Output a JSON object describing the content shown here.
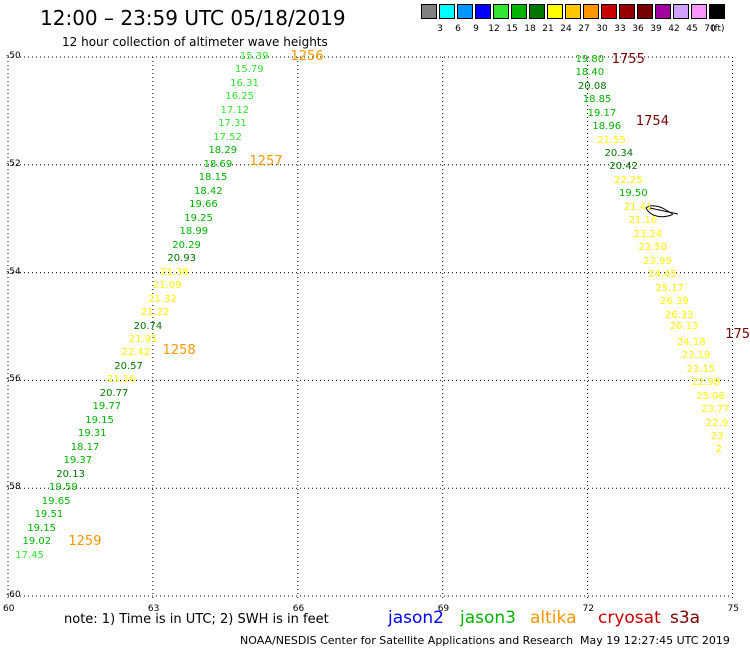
{
  "title": "12:00 – 23:59 UTC 05/18/2019",
  "subtitle": "12 hour collection of altimeter wave heights",
  "scale": {
    "unit": "(ft)",
    "bins": [
      {
        "label": "3",
        "color": "#808080"
      },
      {
        "label": "6",
        "color": "#00ffff"
      },
      {
        "label": "9",
        "color": "#0096ff"
      },
      {
        "label": "12",
        "color": "#0000ff"
      },
      {
        "label": "15",
        "color": "#32e632"
      },
      {
        "label": "18",
        "color": "#00b400"
      },
      {
        "label": "21",
        "color": "#007800"
      },
      {
        "label": "24",
        "color": "#ffff00"
      },
      {
        "label": "27",
        "color": "#ffc800"
      },
      {
        "label": "30",
        "color": "#ff9600"
      },
      {
        "label": "33",
        "color": "#c80000"
      },
      {
        "label": "36",
        "color": "#960000"
      },
      {
        "label": "39",
        "color": "#780000"
      },
      {
        "label": "42",
        "color": "#a000a0"
      },
      {
        "label": "45",
        "color": "#d2a0ff"
      },
      {
        "label": "70",
        "color": "#ff96ff"
      },
      {
        "label": "",
        "color": "#000000"
      }
    ]
  },
  "axes": {
    "y_ticks": [
      "-50",
      "-52",
      "-54",
      "-56",
      "-58",
      "-60"
    ],
    "x_ticks": [
      "60",
      "63",
      "66",
      "69",
      "72",
      "75"
    ]
  },
  "tracks": [
    {
      "satellite": "jason3",
      "points": [
        {
          "lon": 64.8,
          "lat": -50.0,
          "v": "15.39",
          "c": "#32e632"
        },
        {
          "lon": 64.7,
          "lat": -50.25,
          "v": "15.79",
          "c": "#32e632"
        },
        {
          "lon": 64.6,
          "lat": -50.5,
          "v": "16.31",
          "c": "#32e632"
        },
        {
          "lon": 64.5,
          "lat": -50.75,
          "v": "16.25",
          "c": "#32e632"
        },
        {
          "lon": 64.4,
          "lat": -51.0,
          "v": "17.12",
          "c": "#32e632"
        },
        {
          "lon": 64.35,
          "lat": -51.25,
          "v": "17.31",
          "c": "#32e632"
        },
        {
          "lon": 64.25,
          "lat": -51.5,
          "v": "17.52",
          "c": "#32e632"
        },
        {
          "lon": 64.15,
          "lat": -51.75,
          "v": "18.29",
          "c": "#00b400"
        },
        {
          "lon": 64.05,
          "lat": -52.0,
          "v": "18.69",
          "c": "#00b400"
        },
        {
          "lon": 63.95,
          "lat": -52.25,
          "v": "18.15",
          "c": "#00b400"
        },
        {
          "lon": 63.85,
          "lat": -52.5,
          "v": "18.42",
          "c": "#00b400"
        },
        {
          "lon": 63.75,
          "lat": -52.75,
          "v": "19.66",
          "c": "#00b400"
        },
        {
          "lon": 63.65,
          "lat": -53.0,
          "v": "19.25",
          "c": "#00b400"
        },
        {
          "lon": 63.55,
          "lat": -53.25,
          "v": "18.99",
          "c": "#00b400"
        },
        {
          "lon": 63.4,
          "lat": -53.5,
          "v": "20.29",
          "c": "#00b400"
        },
        {
          "lon": 63.3,
          "lat": -53.75,
          "v": "20.93",
          "c": "#007800"
        },
        {
          "lon": 63.15,
          "lat": -54.0,
          "v": "21.38",
          "c": "#ffff00"
        },
        {
          "lon": 63.0,
          "lat": -54.25,
          "v": "21.09",
          "c": "#ffff00"
        },
        {
          "lon": 62.9,
          "lat": -54.5,
          "v": "21.32",
          "c": "#ffff00"
        },
        {
          "lon": 62.75,
          "lat": -54.75,
          "v": "21.22",
          "c": "#ffff00"
        },
        {
          "lon": 62.6,
          "lat": -55.0,
          "v": "20.74",
          "c": "#007800"
        },
        {
          "lon": 62.5,
          "lat": -55.25,
          "v": "21.91",
          "c": "#ffff00"
        },
        {
          "lon": 62.35,
          "lat": -55.5,
          "v": "22.42",
          "c": "#ffff00"
        },
        {
          "lon": 62.2,
          "lat": -55.75,
          "v": "20.57",
          "c": "#007800"
        },
        {
          "lon": 62.05,
          "lat": -56.0,
          "v": "21.16",
          "c": "#ffff00"
        },
        {
          "lon": 61.9,
          "lat": -56.25,
          "v": "20.77",
          "c": "#007800"
        },
        {
          "lon": 61.75,
          "lat": -56.5,
          "v": "19.77",
          "c": "#00b400"
        },
        {
          "lon": 61.6,
          "lat": -56.75,
          "v": "19.15",
          "c": "#00b400"
        },
        {
          "lon": 61.45,
          "lat": -57.0,
          "v": "19.31",
          "c": "#00b400"
        },
        {
          "lon": 61.3,
          "lat": -57.25,
          "v": "18.17",
          "c": "#00b400"
        },
        {
          "lon": 61.15,
          "lat": -57.5,
          "v": "19.37",
          "c": "#00b400"
        },
        {
          "lon": 61.0,
          "lat": -57.75,
          "v": "20.13",
          "c": "#007800"
        },
        {
          "lon": 60.85,
          "lat": -58.0,
          "v": "19.59",
          "c": "#00b400"
        },
        {
          "lon": 60.7,
          "lat": -58.25,
          "v": "19.65",
          "c": "#00b400"
        },
        {
          "lon": 60.55,
          "lat": -58.5,
          "v": "19.51",
          "c": "#00b400"
        },
        {
          "lon": 60.4,
          "lat": -58.75,
          "v": "19.15",
          "c": "#00b400"
        },
        {
          "lon": 60.3,
          "lat": -59.0,
          "v": "19.02",
          "c": "#00b400"
        },
        {
          "lon": 60.15,
          "lat": -59.25,
          "v": "17.45",
          "c": "#32e632"
        }
      ],
      "times": [
        {
          "lon": 65.85,
          "lat": -50.0,
          "t": "1256",
          "c": "#ff9600"
        },
        {
          "lon": 65.0,
          "lat": -51.95,
          "t": "1257",
          "c": "#ff9600"
        },
        {
          "lon": 63.2,
          "lat": -55.45,
          "t": "1258",
          "c": "#ff9600"
        },
        {
          "lon": 61.25,
          "lat": -59.0,
          "t": "1259",
          "c": "#ff9600"
        }
      ]
    },
    {
      "satellite": "s3a",
      "points": [
        {
          "lon": 71.75,
          "lat": -50.05,
          "v": "19.80",
          "c": "#00b400"
        },
        {
          "lon": 71.75,
          "lat": -50.3,
          "v": "18.40",
          "c": "#00b400"
        },
        {
          "lon": 71.8,
          "lat": -50.55,
          "v": "20.08",
          "c": "#007800"
        },
        {
          "lon": 71.9,
          "lat": -50.8,
          "v": "18.85",
          "c": "#00b400"
        },
        {
          "lon": 72.0,
          "lat": -51.05,
          "v": "19.17",
          "c": "#00b400"
        },
        {
          "lon": 72.1,
          "lat": -51.3,
          "v": "18.96",
          "c": "#00b400"
        },
        {
          "lon": 72.2,
          "lat": -51.55,
          "v": "21.55",
          "c": "#ffff00"
        },
        {
          "lon": 72.35,
          "lat": -51.8,
          "v": "20.34",
          "c": "#007800"
        },
        {
          "lon": 72.45,
          "lat": -52.05,
          "v": "20.42",
          "c": "#007800"
        },
        {
          "lon": 72.55,
          "lat": -52.3,
          "v": "22.25",
          "c": "#ffff00"
        },
        {
          "lon": 72.65,
          "lat": -52.55,
          "v": "19.50",
          "c": "#00b400"
        },
        {
          "lon": 72.75,
          "lat": -52.8,
          "v": "21.41",
          "c": "#ffff00"
        },
        {
          "lon": 72.85,
          "lat": -53.05,
          "v": "21.16",
          "c": "#ffff00"
        },
        {
          "lon": 72.95,
          "lat": -53.3,
          "v": "23.24",
          "c": "#ffff00"
        },
        {
          "lon": 73.05,
          "lat": -53.55,
          "v": "23.50",
          "c": "#ffff00"
        },
        {
          "lon": 73.15,
          "lat": -53.8,
          "v": "23.99",
          "c": "#ffff00"
        },
        {
          "lon": 73.25,
          "lat": -54.05,
          "v": "24.45",
          "c": "#ffff00"
        },
        {
          "lon": 73.4,
          "lat": -54.3,
          "v": "25.17",
          "c": "#ffff00"
        },
        {
          "lon": 73.5,
          "lat": -54.55,
          "v": "26.39",
          "c": "#ffff00"
        },
        {
          "lon": 73.6,
          "lat": -54.8,
          "v": "26.33",
          "c": "#ffff00"
        },
        {
          "lon": 73.7,
          "lat": -55.0,
          "v": "26.13",
          "c": "#ffff00"
        },
        {
          "lon": 73.85,
          "lat": -55.3,
          "v": "24.18",
          "c": "#ffff00"
        },
        {
          "lon": 73.95,
          "lat": -55.55,
          "v": "23.19",
          "c": "#ffff00"
        },
        {
          "lon": 74.05,
          "lat": -55.8,
          "v": "23.15",
          "c": "#ffff00"
        },
        {
          "lon": 74.15,
          "lat": -56.05,
          "v": "22.98",
          "c": "#ffff00"
        },
        {
          "lon": 74.25,
          "lat": -56.3,
          "v": "25.06",
          "c": "#ffff00"
        },
        {
          "lon": 74.35,
          "lat": -56.55,
          "v": "23.77",
          "c": "#ffff00"
        },
        {
          "lon": 74.45,
          "lat": -56.8,
          "v": "22.9",
          "c": "#ffff00"
        },
        {
          "lon": 74.55,
          "lat": -57.05,
          "v": "23",
          "c": "#ffff00"
        },
        {
          "lon": 74.65,
          "lat": -57.3,
          "v": "2",
          "c": "#ffff00"
        }
      ],
      "times": [
        {
          "lon": 72.5,
          "lat": -50.05,
          "t": "1755",
          "c": "#780000"
        },
        {
          "lon": 73.0,
          "lat": -51.2,
          "t": "1754",
          "c": "#780000"
        },
        {
          "lon": 74.85,
          "lat": -55.15,
          "t": "175",
          "c": "#780000"
        }
      ]
    }
  ],
  "note": "note: 1) Time is in UTC; 2) SWH is in feet",
  "legend": [
    {
      "name": "jason2",
      "color": "#0000ff"
    },
    {
      "name": "jason3",
      "color": "#00b400"
    },
    {
      "name": "altika",
      "color": "#ff9600"
    },
    {
      "name": "cryosat",
      "color": "#c80000"
    },
    {
      "name": "s3a",
      "color": "#780000"
    }
  ],
  "footer": "NOAA/NESDIS Center for Satellite Applications and Research",
  "footer_time": "May 19 12:27:45 UTC 2019"
}
